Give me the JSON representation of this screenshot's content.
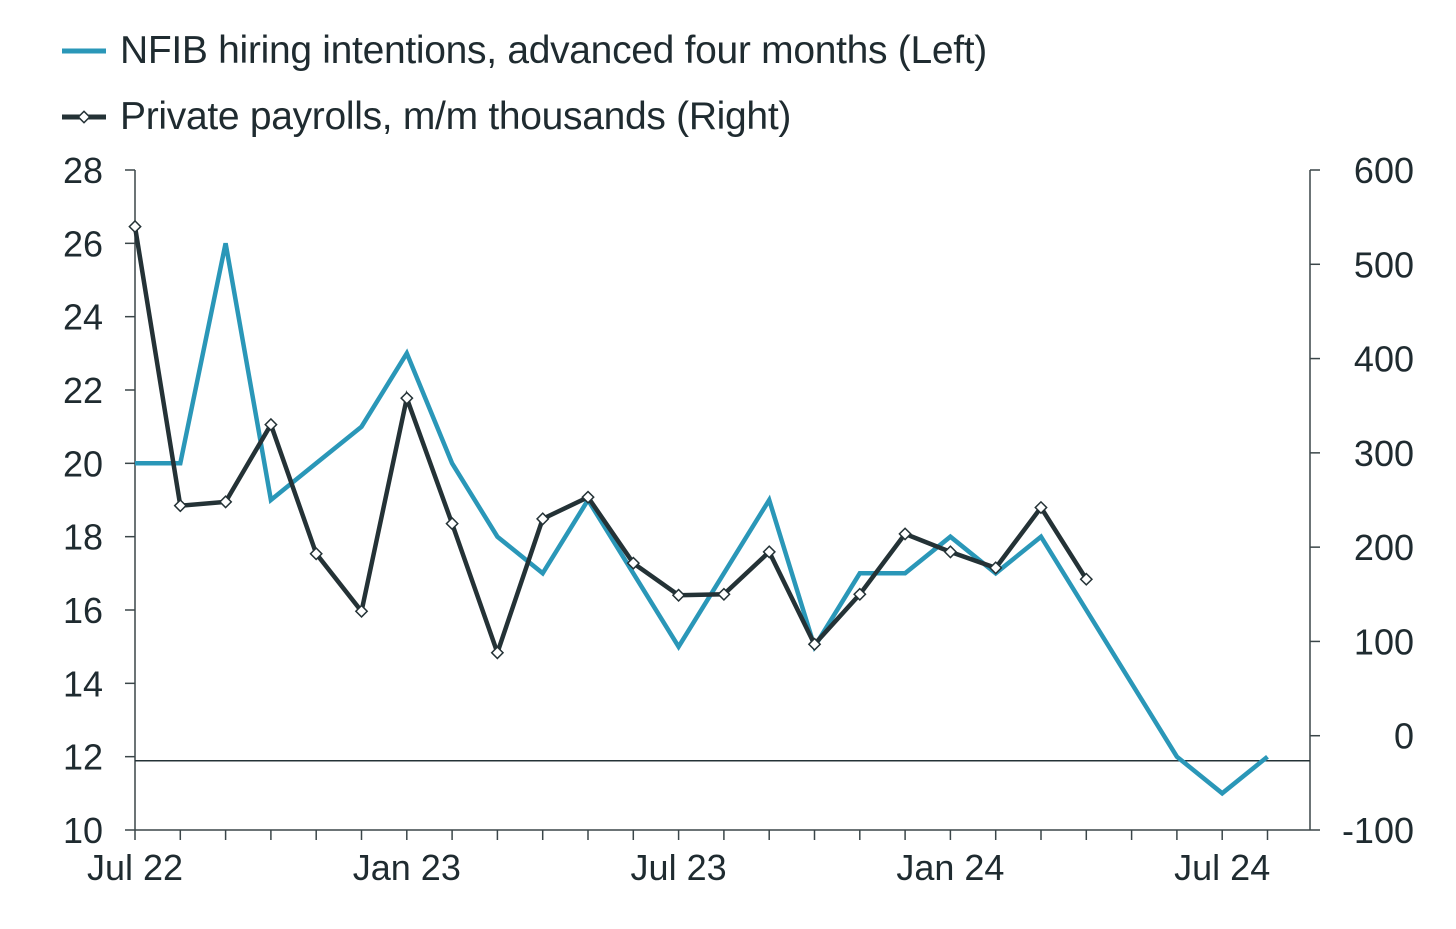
{
  "chart_data": {
    "type": "line",
    "legend_position": "top-left",
    "grid": false,
    "categories": [
      "Jul 22",
      "Aug 22",
      "Sep 22",
      "Oct 22",
      "Nov 22",
      "Dec 22",
      "Jan 23",
      "Feb 23",
      "Mar 23",
      "Apr 23",
      "May 23",
      "Jun 23",
      "Jul 23",
      "Aug 23",
      "Sep 23",
      "Oct 23",
      "Nov 23",
      "Dec 23",
      "Jan 24",
      "Feb 24",
      "Mar 24",
      "Apr 24",
      "May 24",
      "Jun 24",
      "Jul 24",
      "Aug 24"
    ],
    "x_tick_labels": [
      {
        "index": 0,
        "label": "Jul 22"
      },
      {
        "index": 6,
        "label": "Jan 23"
      },
      {
        "index": 12,
        "label": "Jul 23"
      },
      {
        "index": 18,
        "label": "Jan 24"
      },
      {
        "index": 24,
        "label": "Jul 24"
      }
    ],
    "left_axis": {
      "ylim": [
        10,
        28
      ],
      "ticks": [
        10,
        12,
        14,
        16,
        18,
        20,
        22,
        24,
        26,
        28
      ]
    },
    "right_axis": {
      "ylim": [
        -100,
        600
      ],
      "ticks": [
        -100,
        0,
        100,
        200,
        300,
        400,
        500,
        600
      ]
    },
    "zero_line_right": 0,
    "series": [
      {
        "name": "NFIB hiring intentions, advanced four months (Left)",
        "axis": "left",
        "color": "#2a97b8",
        "marker": "none",
        "values": [
          20,
          20,
          26,
          19,
          20,
          21,
          23,
          20,
          18,
          17,
          19,
          17,
          15,
          17,
          19,
          15,
          17,
          17,
          18,
          17,
          18,
          16,
          14,
          12,
          11,
          12
        ]
      },
      {
        "name": "Private payrolls, m/m thousands (Right)",
        "axis": "right",
        "color": "#243236",
        "marker": "diamond",
        "values": [
          540,
          244,
          248,
          330,
          193,
          132,
          358,
          225,
          88,
          230,
          253,
          183,
          149,
          150,
          195,
          97,
          150,
          214,
          195,
          178,
          242,
          166,
          null,
          null,
          null,
          null
        ]
      }
    ]
  }
}
